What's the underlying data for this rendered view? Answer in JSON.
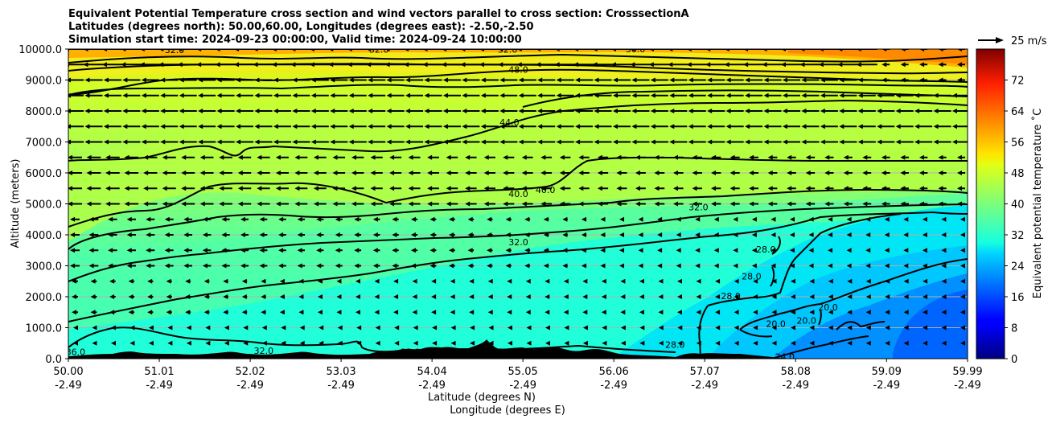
{
  "chart_data": {
    "type": "contour",
    "title_lines": [
      "Equivalent Potential Temperature cross section and wind vectors parallel to cross section: CrosssectionA",
      "Latitudes (degrees north): 50.00,60.00, Longitudes (degrees east): -2.50,-2.50",
      "Simulation start time: 2024-09-23 00:00:00, Valid time: 2024-09-24 10:00:00"
    ],
    "ylabel": "Altitude (meters)",
    "xlabel_lines": [
      "Latitude (degrees N)",
      "Longitude (degrees E)"
    ],
    "xlim": [
      50.0,
      59.99
    ],
    "ylim": [
      0,
      10000
    ],
    "x_ticks": [
      {
        "lat": "50.00",
        "lon": "-2.49",
        "value": 50.0
      },
      {
        "lat": "51.01",
        "lon": "-2.49",
        "value": 51.01
      },
      {
        "lat": "52.02",
        "lon": "-2.49",
        "value": 52.02
      },
      {
        "lat": "53.03",
        "lon": "-2.49",
        "value": 53.03
      },
      {
        "lat": "54.04",
        "lon": "-2.49",
        "value": 54.04
      },
      {
        "lat": "55.05",
        "lon": "-2.49",
        "value": 55.05
      },
      {
        "lat": "56.06",
        "lon": "-2.49",
        "value": 56.06
      },
      {
        "lat": "57.07",
        "lon": "-2.49",
        "value": 57.07
      },
      {
        "lat": "58.08",
        "lon": "-2.49",
        "value": 58.08
      },
      {
        "lat": "59.09",
        "lon": "-2.49",
        "value": 59.09
      },
      {
        "lat": "59.99",
        "lon": "-2.49",
        "value": 59.99
      }
    ],
    "y_ticks": [
      "0.0",
      "1000.0",
      "2000.0",
      "3000.0",
      "4000.0",
      "5000.0",
      "6000.0",
      "7000.0",
      "8000.0",
      "9000.0",
      "10000.0"
    ],
    "y_tick_values": [
      0,
      1000,
      2000,
      3000,
      4000,
      5000,
      6000,
      7000,
      8000,
      9000,
      10000
    ],
    "grid": "horizontal",
    "colorbar": {
      "label": "Equivalent potential temperature ˚C",
      "ticks": [
        "0",
        "8",
        "16",
        "24",
        "32",
        "40",
        "48",
        "56",
        "64",
        "72"
      ],
      "tick_values": [
        0,
        8,
        16,
        24,
        32,
        40,
        48,
        56,
        64,
        72
      ],
      "range": [
        0,
        80
      ],
      "colormap": "jet"
    },
    "quiver_key": "25 m/s",
    "contour_labels": [
      {
        "text": "32.0",
        "x": 51.18,
        "y": 9980
      },
      {
        "text": "32.0",
        "x": 53.45,
        "y": 9990
      },
      {
        "text": "32.0",
        "x": 54.88,
        "y": 9990
      },
      {
        "text": "36.0",
        "x": 56.3,
        "y": 10000
      },
      {
        "text": "48.0",
        "x": 55.0,
        "y": 9340
      },
      {
        "text": "44.0",
        "x": 54.9,
        "y": 7640
      },
      {
        "text": "40.0",
        "x": 55.0,
        "y": 5330
      },
      {
        "text": "40.0",
        "x": 55.3,
        "y": 5450
      },
      {
        "text": "32.0",
        "x": 57.0,
        "y": 4900
      },
      {
        "text": "32.0",
        "x": 55.0,
        "y": 3760
      },
      {
        "text": "28.0",
        "x": 57.75,
        "y": 3530
      },
      {
        "text": "28.0",
        "x": 57.59,
        "y": 2660
      },
      {
        "text": "28.0",
        "x": 57.36,
        "y": 2030
      },
      {
        "text": "20.0",
        "x": 57.86,
        "y": 1130
      },
      {
        "text": "20.0",
        "x": 58.2,
        "y": 1240
      },
      {
        "text": "20.0",
        "x": 58.44,
        "y": 1660
      },
      {
        "text": "24.0",
        "x": 57.96,
        "y": 70
      },
      {
        "text": "28.0",
        "x": 56.74,
        "y": 460
      },
      {
        "text": "32.0",
        "x": 53.8,
        "y": 220
      },
      {
        "text": "32.0",
        "x": 52.17,
        "y": 260
      },
      {
        "text": "36.0",
        "x": 50.08,
        "y": 220
      }
    ],
    "wind": {
      "direction": "parallel to cross section, predominantly toward decreasing latitude",
      "units": "m/s"
    }
  }
}
